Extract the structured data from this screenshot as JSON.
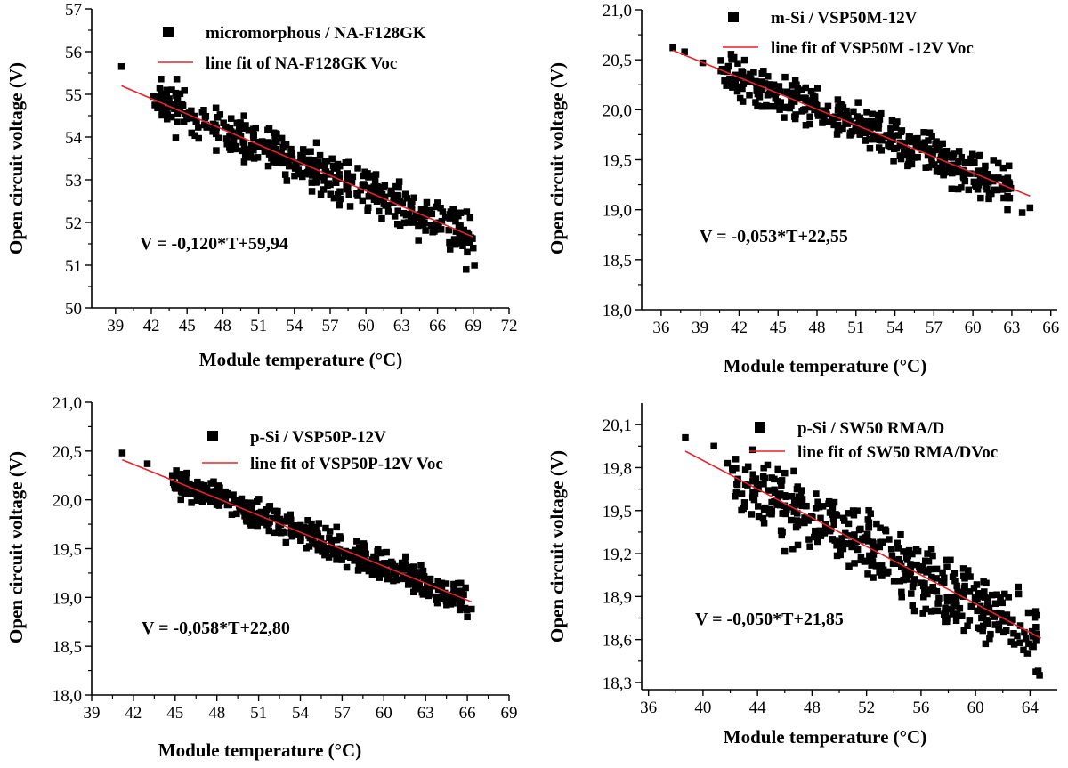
{
  "chart_data": [
    {
      "type": "scatter",
      "xlabel": "Module temperature (°C)",
      "ylabel": "Open circuit voltage (V)",
      "xlim": [
        37,
        72
      ],
      "ylim": [
        50,
        57
      ],
      "xticks": [
        "39",
        "42",
        "45",
        "48",
        "51",
        "54",
        "57",
        "60",
        "63",
        "66",
        "69",
        "72"
      ],
      "yticks": [
        "50",
        "51",
        "52",
        "53",
        "54",
        "55",
        "56",
        "57"
      ],
      "series": [
        {
          "name": "micromorphous / NA-F128GK",
          "kind": "scatter",
          "cloud": {
            "x_min": 42.2,
            "x_max": 69.0,
            "n": 420,
            "spread": 0.75,
            "seed": 11
          },
          "extra_points": [
            [
              39.5,
              55.65
            ],
            [
              42.2,
              54.95
            ],
            [
              42.3,
              54.75
            ],
            [
              68.4,
              50.9
            ],
            [
              69.1,
              51.0
            ]
          ]
        },
        {
          "name": "line fit of NA-F128GK Voc",
          "kind": "fit",
          "slope": -0.12,
          "intercept": 59.94,
          "x_range": [
            39.5,
            69.0
          ]
        }
      ],
      "annotation": "V = -0,120*T+59,94"
    },
    {
      "type": "scatter",
      "xlabel": "Module temperature (°C)",
      "ylabel": "Open circuit voltage (V)",
      "xlim": [
        34.5,
        66.5
      ],
      "ylim": [
        18.0,
        21.0
      ],
      "xticks": [
        "36",
        "39",
        "42",
        "45",
        "48",
        "51",
        "54",
        "57",
        "60",
        "63",
        "66"
      ],
      "yticks": [
        "18,0",
        "18,5",
        "19,0",
        "19,5",
        "20,0",
        "20,5",
        "21,0"
      ],
      "series": [
        {
          "name": "m-Si / VSP50M-12V",
          "kind": "scatter",
          "cloud": {
            "x_min": 40.5,
            "x_max": 63.0,
            "n": 420,
            "spread": 0.3,
            "seed": 23
          },
          "extra_points": [
            [
              36.9,
              20.62
            ],
            [
              37.8,
              20.58
            ],
            [
              39.2,
              20.47
            ],
            [
              63.8,
              18.97
            ],
            [
              64.4,
              19.02
            ]
          ]
        },
        {
          "name": "line fit of VSP50M -12V Voc",
          "kind": "fit",
          "slope": -0.053,
          "intercept": 22.55,
          "x_range": [
            36.9,
            64.4
          ]
        }
      ],
      "annotation": "V = -0,053*T+22,55"
    },
    {
      "type": "scatter",
      "xlabel": "Module temperature (°C)",
      "ylabel": "Open circuit voltage (V)",
      "xlim": [
        39,
        69
      ],
      "ylim": [
        18.0,
        21.0
      ],
      "xticks": [
        "39",
        "42",
        "45",
        "48",
        "51",
        "54",
        "57",
        "60",
        "63",
        "66",
        "69"
      ],
      "yticks": [
        "18,0",
        "18,5",
        "19,0",
        "19,5",
        "20,0",
        "20,5",
        "21,0"
      ],
      "series": [
        {
          "name": "p-Si / VSP50P-12V",
          "kind": "scatter",
          "cloud": {
            "x_min": 44.8,
            "x_max": 66.0,
            "n": 420,
            "spread": 0.22,
            "seed": 37
          },
          "extra_points": [
            [
              41.2,
              20.48
            ],
            [
              43.0,
              20.37
            ],
            [
              44.8,
              20.25
            ],
            [
              66.0,
              18.8
            ],
            [
              66.3,
              18.88
            ]
          ]
        },
        {
          "name": "line fit of VSP50P-12V Voc",
          "kind": "fit",
          "slope": -0.058,
          "intercept": 22.8,
          "x_range": [
            41.2,
            66.3
          ]
        }
      ],
      "annotation": "V = -0,058*T+22,80"
    },
    {
      "type": "scatter",
      "xlabel": "Module temperature (°C)",
      "ylabel": "Open circuit voltage (V)",
      "xlim": [
        35.5,
        66
      ],
      "ylim": [
        18.25,
        20.25
      ],
      "xticks": [
        "36",
        "40",
        "44",
        "48",
        "52",
        "56",
        "60",
        "64"
      ],
      "yticks": [
        "18,3",
        "18,6",
        "18,9",
        "19,2",
        "19,5",
        "19,8",
        "20,1"
      ],
      "series": [
        {
          "name": "p-Si / SW50 RMA/D",
          "kind": "scatter",
          "cloud": {
            "x_min": 42.0,
            "x_max": 64.5,
            "n": 420,
            "spread": 0.36,
            "seed": 53
          },
          "extra_points": [
            [
              38.7,
              20.01
            ],
            [
              40.8,
              19.95
            ],
            [
              41.8,
              19.83
            ],
            [
              64.6,
              18.38
            ],
            [
              64.7,
              18.35
            ]
          ]
        },
        {
          "name": "line fit of SW50 RMA/DVoc",
          "kind": "fit",
          "slope": -0.05,
          "intercept": 21.85,
          "x_range": [
            38.7,
            64.8
          ]
        }
      ],
      "annotation": "V = -0,050*T+21,85"
    }
  ]
}
